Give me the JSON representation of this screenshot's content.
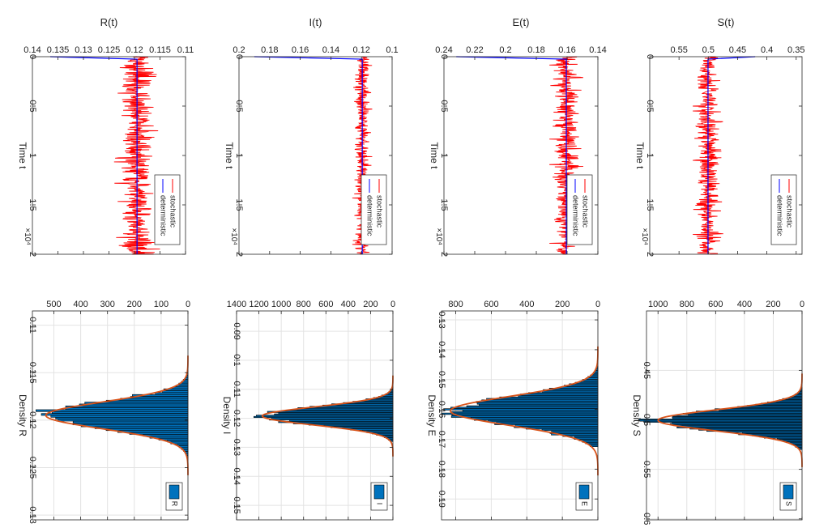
{
  "figure": {
    "background": "#ffffff"
  },
  "chart_data": [
    {
      "id": "ts-R",
      "type": "line",
      "title": "R(t)",
      "xlabel": "Time t",
      "ylabel": "",
      "x_exponent": "×10⁴",
      "xlim": [
        0,
        2
      ],
      "ylim": [
        0.11,
        0.14
      ],
      "xticks": [
        0,
        0.5,
        1,
        1.5,
        2
      ],
      "xtick_labels": [
        "0",
        "0.5",
        "1",
        "1.5",
        "2"
      ],
      "yticks": [
        0.11,
        0.115,
        0.12,
        0.125,
        0.13,
        0.135,
        0.14
      ],
      "ytick_labels": [
        "0.11",
        "0.115",
        "0.12",
        "0.125",
        "0.13",
        "0.135",
        "0.14"
      ],
      "legend": {
        "position": "bottom-right",
        "entries": [
          "stochastic",
          "deterministic"
        ]
      },
      "series": [
        {
          "name": "stochastic",
          "color": "#ff0000",
          "mean": 0.1195,
          "spread": 0.0045,
          "start": 0.1195
        },
        {
          "name": "deterministic",
          "color": "#0000ff",
          "initial": 0.1365,
          "steady": 0.1195
        }
      ]
    },
    {
      "id": "ts-I",
      "type": "line",
      "title": "I(t)",
      "xlabel": "Time t",
      "ylabel": "",
      "x_exponent": "×10⁴",
      "xlim": [
        0,
        2
      ],
      "ylim": [
        0.1,
        0.2
      ],
      "xticks": [
        0,
        0.5,
        1,
        1.5,
        2
      ],
      "xtick_labels": [
        "0",
        "0.5",
        "1",
        "1.5",
        "2"
      ],
      "yticks": [
        0.1,
        0.12,
        0.14,
        0.16,
        0.18,
        0.2
      ],
      "ytick_labels": [
        "0.1",
        "0.12",
        "0.14",
        "0.16",
        "0.18",
        "0.2"
      ],
      "legend": {
        "position": "bottom-right",
        "entries": [
          "stochastic",
          "deterministic"
        ]
      },
      "series": [
        {
          "name": "stochastic",
          "color": "#ff0000",
          "mean": 0.1195,
          "spread": 0.0065,
          "start": 0.1195
        },
        {
          "name": "deterministic",
          "color": "#0000ff",
          "initial": 0.19,
          "steady": 0.1195
        }
      ]
    },
    {
      "id": "ts-E",
      "type": "line",
      "title": "E(t)",
      "xlabel": "Time t",
      "ylabel": "",
      "x_exponent": "×10⁴",
      "xlim": [
        0,
        2
      ],
      "ylim": [
        0.14,
        0.24
      ],
      "xticks": [
        0,
        0.5,
        1,
        1.5,
        2
      ],
      "xtick_labels": [
        "0",
        "0.5",
        "1",
        "1.5",
        "2"
      ],
      "yticks": [
        0.14,
        0.16,
        0.18,
        0.2,
        0.22,
        0.24
      ],
      "ytick_labels": [
        "0.14",
        "0.16",
        "0.18",
        "0.2",
        "0.22",
        "0.24"
      ],
      "legend": {
        "position": "bottom-right",
        "entries": [
          "stochastic",
          "deterministic"
        ]
      },
      "series": [
        {
          "name": "stochastic",
          "color": "#ff0000",
          "mean": 0.1605,
          "spread": 0.011,
          "start": 0.1605
        },
        {
          "name": "deterministic",
          "color": "#0000ff",
          "initial": 0.232,
          "steady": 0.1605
        }
      ]
    },
    {
      "id": "ts-S",
      "type": "line",
      "title": "S(t)",
      "xlabel": "Time t",
      "ylabel": "",
      "x_exponent": "×10⁴",
      "xlim": [
        0,
        2
      ],
      "ylim": [
        0.34,
        0.6
      ],
      "xticks": [
        0,
        0.5,
        1,
        1.5,
        2
      ],
      "xtick_labels": [
        "0",
        "0.5",
        "1",
        "1.5",
        "2"
      ],
      "yticks": [
        0.35,
        0.4,
        0.45,
        0.5,
        0.55
      ],
      "ytick_labels": [
        "0.35",
        "0.4",
        "0.45",
        "0.5",
        "0.55"
      ],
      "legend": {
        "position": "bottom-right",
        "entries": [
          "stochastic",
          "deterministic"
        ]
      },
      "series": [
        {
          "name": "stochastic",
          "color": "#ff0000",
          "mean": 0.5005,
          "spread": 0.026,
          "start": 0.5005
        },
        {
          "name": "deterministic",
          "color": "#0000ff",
          "initial": 0.42,
          "steady": 0.5005
        }
      ]
    },
    {
      "id": "hist-R",
      "type": "bar",
      "title": "",
      "xlabel": "Density R",
      "ylabel": "",
      "xlim": [
        0.1085,
        0.1305
      ],
      "ylim": [
        0,
        580
      ],
      "xticks": [
        0.11,
        0.115,
        0.12,
        0.125,
        0.13
      ],
      "xtick_labels": [
        "0.11",
        "0.115",
        "0.12",
        "0.125",
        "0.13"
      ],
      "yticks": [
        0,
        100,
        200,
        300,
        400,
        500
      ],
      "ytick_labels": [
        "0",
        "100",
        "200",
        "300",
        "400",
        "500"
      ],
      "legend": {
        "position": "bottom-right",
        "entries": [
          "R"
        ]
      },
      "histogram": {
        "mean": 0.1195,
        "sd": 0.0014,
        "peak": 530,
        "range": [
          0.1135,
          0.1245
        ],
        "bins": 55
      },
      "bar_color": "#0072bd",
      "fit_color": "#d95319"
    },
    {
      "id": "hist-I",
      "type": "bar",
      "title": "",
      "xlabel": "Density I",
      "ylabel": "",
      "xlim": [
        0.083,
        0.155
      ],
      "ylim": [
        0,
        1400
      ],
      "xticks": [
        0.09,
        0.1,
        0.11,
        0.12,
        0.13,
        0.14,
        0.15
      ],
      "xtick_labels": [
        "0.09",
        "0.1",
        "0.11",
        "0.12",
        "0.13",
        "0.14",
        "0.15"
      ],
      "yticks": [
        0,
        200,
        400,
        600,
        800,
        1000,
        1200,
        1400
      ],
      "ytick_labels": [
        "0",
        "200",
        "400",
        "600",
        "800",
        "1000",
        "1200",
        "1400"
      ],
      "legend": {
        "position": "bottom-right",
        "entries": [
          "I"
        ]
      },
      "histogram": {
        "mean": 0.1192,
        "sd": 0.0031,
        "peak": 1170,
        "range": [
          0.1085,
          0.128
        ],
        "bins": 45
      },
      "bar_color": "#0072bd",
      "fit_color": "#d95319"
    },
    {
      "id": "hist-E",
      "type": "bar",
      "title": "",
      "xlabel": "Density E",
      "ylabel": "",
      "xlim": [
        0.127,
        0.197
      ],
      "ylim": [
        0,
        880
      ],
      "xticks": [
        0.13,
        0.14,
        0.15,
        0.16,
        0.17,
        0.18,
        0.19
      ],
      "xtick_labels": [
        "0.13",
        "0.14",
        "0.15",
        "0.16",
        "0.17",
        "0.18",
        "0.19"
      ],
      "yticks": [
        0,
        200,
        400,
        600,
        800
      ],
      "ytick_labels": [
        "0",
        "200",
        "400",
        "600",
        "800"
      ],
      "legend": {
        "position": "bottom-right",
        "entries": [
          "E"
        ]
      },
      "histogram": {
        "mean": 0.1605,
        "sd": 0.0048,
        "peak": 830,
        "range": [
          0.1455,
          0.1725
        ],
        "bins": 55
      },
      "bar_color": "#0072bd",
      "fit_color": "#d95319"
    },
    {
      "id": "hist-S",
      "type": "bar",
      "title": "",
      "xlabel": "Density S",
      "ylabel": "",
      "xlim": [
        0.39,
        0.601
      ],
      "ylim": [
        0,
        1080
      ],
      "xticks": [
        0.45,
        0.5,
        0.55,
        0.6
      ],
      "xtick_labels": [
        "0.45",
        "0.5",
        "0.55",
        "0.6"
      ],
      "yticks": [
        0,
        200,
        400,
        600,
        800,
        1000
      ],
      "ytick_labels": [
        "0",
        "200",
        "400",
        "600",
        "800",
        "1000"
      ],
      "legend": {
        "position": "bottom-right",
        "entries": [
          "S"
        ]
      },
      "histogram": {
        "mean": 0.5005,
        "sd": 0.0105,
        "peak": 1000,
        "range": [
          0.467,
          0.53
        ],
        "bins": 55
      },
      "bar_color": "#0072bd",
      "fit_color": "#d95319"
    }
  ]
}
